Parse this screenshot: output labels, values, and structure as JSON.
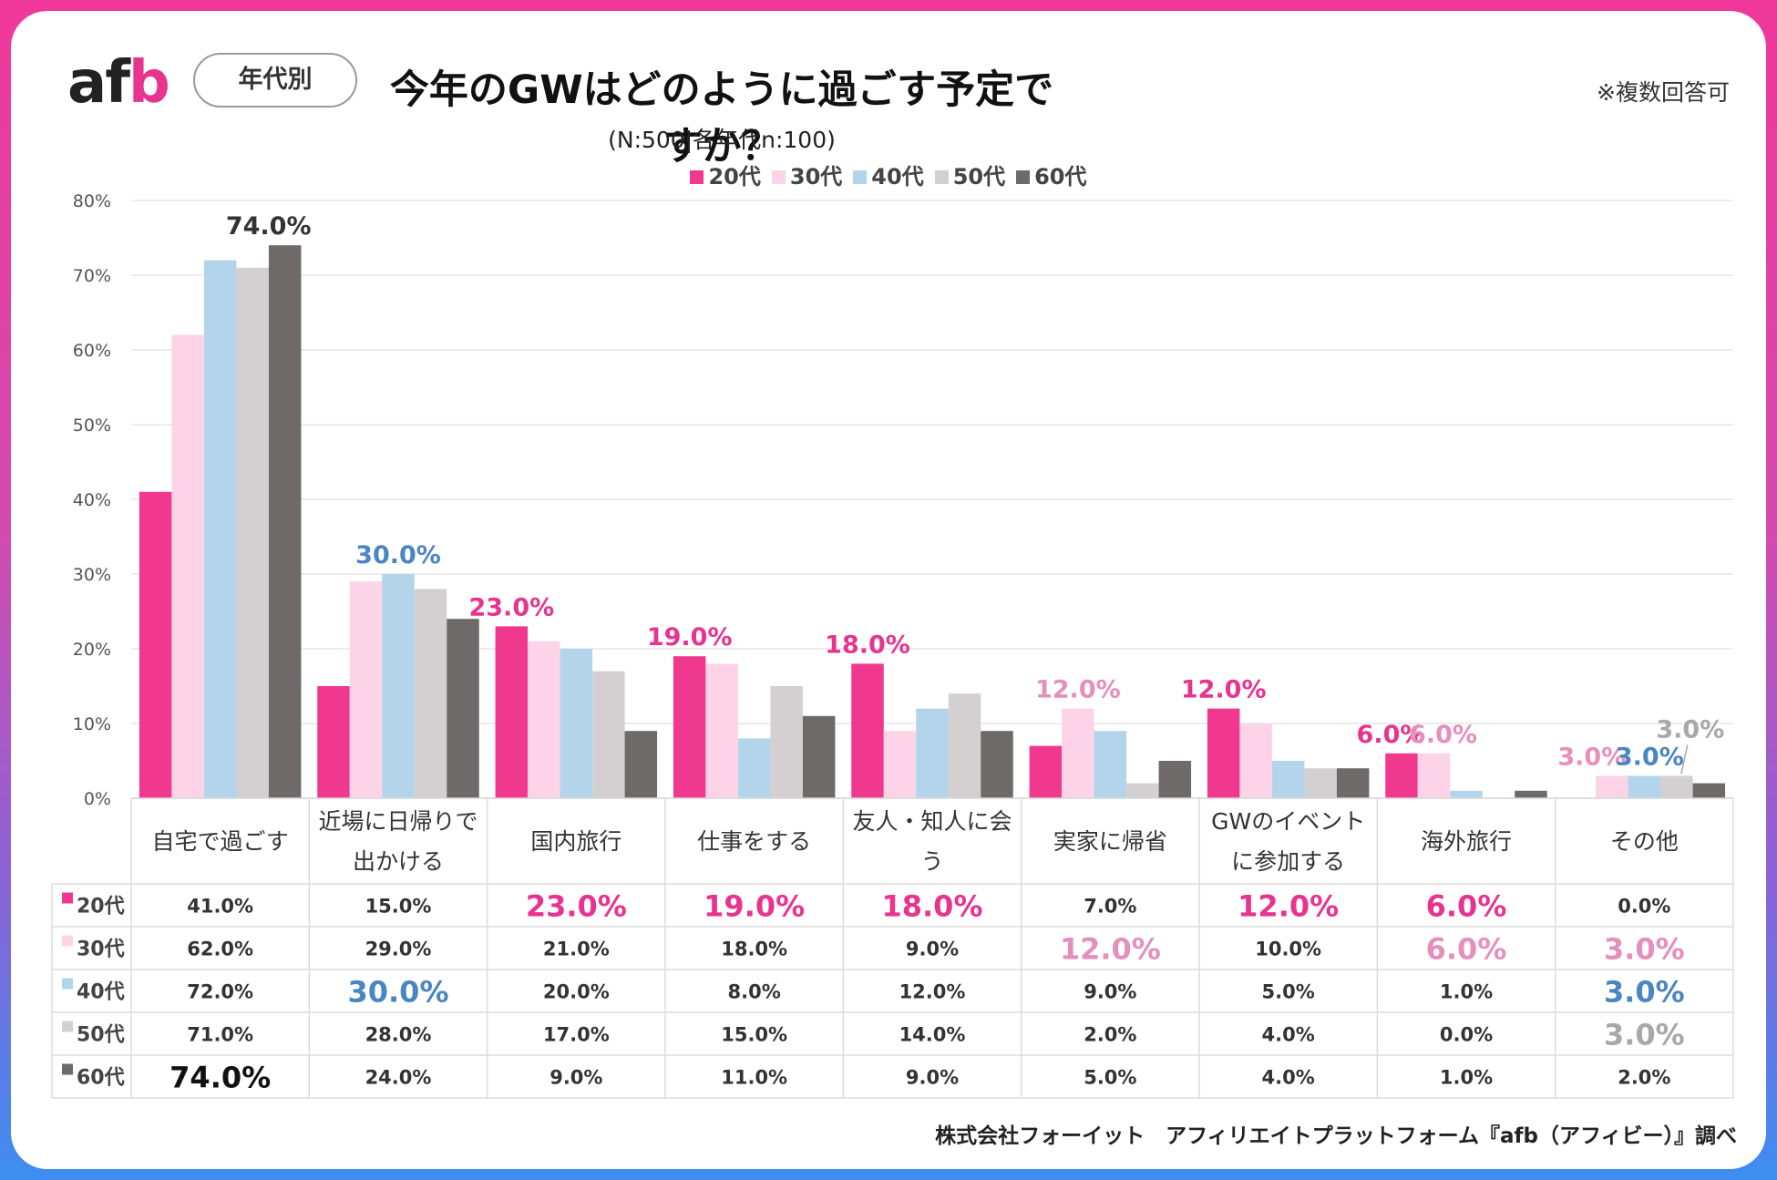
{
  "logo": {
    "text_a": "af",
    "text_b": "b"
  },
  "badge": "年代別",
  "title": "今年のGWはどのように過ごす予定ですか？",
  "subtitle": "(N:500|各年代n:100)",
  "note": "※複数回答可",
  "footer": "株式会社フォーイット　アフィリエイトプラットフォーム『afb（アフィビー）』調べ",
  "colors": {
    "20代": "#f0388e",
    "30代": "#fdd4e7",
    "40代": "#b3d4eb",
    "50代": "#d4d0d2",
    "60代": "#6e6a69",
    "hl_pink": "#e8348f",
    "hl_lightpink": "#e58fbc",
    "hl_blue": "#4a86c2",
    "hl_gray": "#a8a8a8",
    "hl_black": "#111111"
  },
  "chart_data": {
    "type": "bar",
    "title": "今年のGWはどのように過ごす予定ですか？",
    "ylim": [
      0,
      80
    ],
    "yticks": [
      "0%",
      "10%",
      "20%",
      "30%",
      "40%",
      "50%",
      "60%",
      "70%",
      "80%"
    ],
    "categories": [
      [
        "自宅で過ごす"
      ],
      [
        "近場に日帰りで",
        "出かける"
      ],
      [
        "国内旅行"
      ],
      [
        "仕事をする"
      ],
      [
        "友人・知人に会",
        "う"
      ],
      [
        "実家に帰省"
      ],
      [
        "GWのイベント",
        "に参加する"
      ],
      [
        "海外旅行"
      ],
      [
        "その他"
      ]
    ],
    "series": [
      {
        "name": "20代",
        "values": [
          41.0,
          15.0,
          23.0,
          19.0,
          18.0,
          7.0,
          12.0,
          6.0,
          0.0
        ],
        "labels": [
          "41.0%",
          "15.0%",
          "23.0%",
          "19.0%",
          "18.0%",
          "7.0%",
          "12.0%",
          "6.0%",
          "0.0%"
        ]
      },
      {
        "name": "30代",
        "values": [
          62.0,
          29.0,
          21.0,
          18.0,
          9.0,
          12.0,
          10.0,
          6.0,
          3.0
        ],
        "labels": [
          "62.0%",
          "29.0%",
          "21.0%",
          "18.0%",
          "9.0%",
          "12.0%",
          "10.0%",
          "6.0%",
          "3.0%"
        ]
      },
      {
        "name": "40代",
        "values": [
          72.0,
          30.0,
          20.0,
          8.0,
          12.0,
          9.0,
          5.0,
          1.0,
          3.0
        ],
        "labels": [
          "72.0%",
          "30.0%",
          "20.0%",
          "8.0%",
          "12.0%",
          "9.0%",
          "5.0%",
          "1.0%",
          "3.0%"
        ]
      },
      {
        "name": "50代",
        "values": [
          71.0,
          28.0,
          17.0,
          15.0,
          14.0,
          2.0,
          4.0,
          0.0,
          3.0
        ],
        "labels": [
          "71.0%",
          "28.0%",
          "17.0%",
          "15.0%",
          "14.0%",
          "2.0%",
          "4.0%",
          "0.0%",
          "3.0%"
        ]
      },
      {
        "name": "60代",
        "values": [
          74.0,
          24.0,
          9.0,
          11.0,
          9.0,
          5.0,
          4.0,
          1.0,
          2.0
        ],
        "labels": [
          "74.0%",
          "24.0%",
          "9.0%",
          "11.0%",
          "9.0%",
          "5.0%",
          "4.0%",
          "1.0%",
          "2.0%"
        ]
      }
    ],
    "callouts": [
      {
        "category": 0,
        "series": 4,
        "text": "74.0%",
        "color": "#333333"
      },
      {
        "category": 1,
        "series": 2,
        "text": "30.0%",
        "color": "#4a86c2"
      },
      {
        "category": 2,
        "series": 0,
        "text": "23.0%",
        "color": "#e8348f"
      },
      {
        "category": 3,
        "series": 0,
        "text": "19.0%",
        "color": "#e8348f"
      },
      {
        "category": 4,
        "series": 0,
        "text": "18.0%",
        "color": "#e8348f"
      },
      {
        "category": 5,
        "series": 1,
        "text": "12.0%",
        "color": "#e58fbc"
      },
      {
        "category": 6,
        "series": 0,
        "text": "12.0%",
        "color": "#e8348f"
      },
      {
        "category": 7,
        "series": 0,
        "text": "6.0%",
        "color": "#e8348f"
      },
      {
        "category": 7,
        "series": 1,
        "text": "6.0%",
        "color": "#e58fbc"
      },
      {
        "category": 8,
        "series": 1,
        "text": "3.0%",
        "color": "#e58fbc"
      },
      {
        "category": 8,
        "series": 2,
        "text": "3.0%",
        "color": "#4a86c2"
      },
      {
        "category": 8,
        "series": 3,
        "text": "3.0%",
        "color": "#a8a8a8"
      }
    ],
    "table_highlights": [
      {
        "series": 4,
        "category": 0,
        "color": "#111111"
      },
      {
        "series": 2,
        "category": 1,
        "color": "#4a86c2"
      },
      {
        "series": 0,
        "category": 2,
        "color": "#e8348f"
      },
      {
        "series": 0,
        "category": 3,
        "color": "#e8348f"
      },
      {
        "series": 0,
        "category": 4,
        "color": "#e8348f"
      },
      {
        "series": 1,
        "category": 5,
        "color": "#e58fbc"
      },
      {
        "series": 0,
        "category": 6,
        "color": "#e8348f"
      },
      {
        "series": 0,
        "category": 7,
        "color": "#e8348f"
      },
      {
        "series": 1,
        "category": 7,
        "color": "#e58fbc"
      },
      {
        "series": 1,
        "category": 8,
        "color": "#e58fbc"
      },
      {
        "series": 2,
        "category": 8,
        "color": "#4a86c2"
      },
      {
        "series": 3,
        "category": 8,
        "color": "#a8a8a8"
      }
    ]
  }
}
